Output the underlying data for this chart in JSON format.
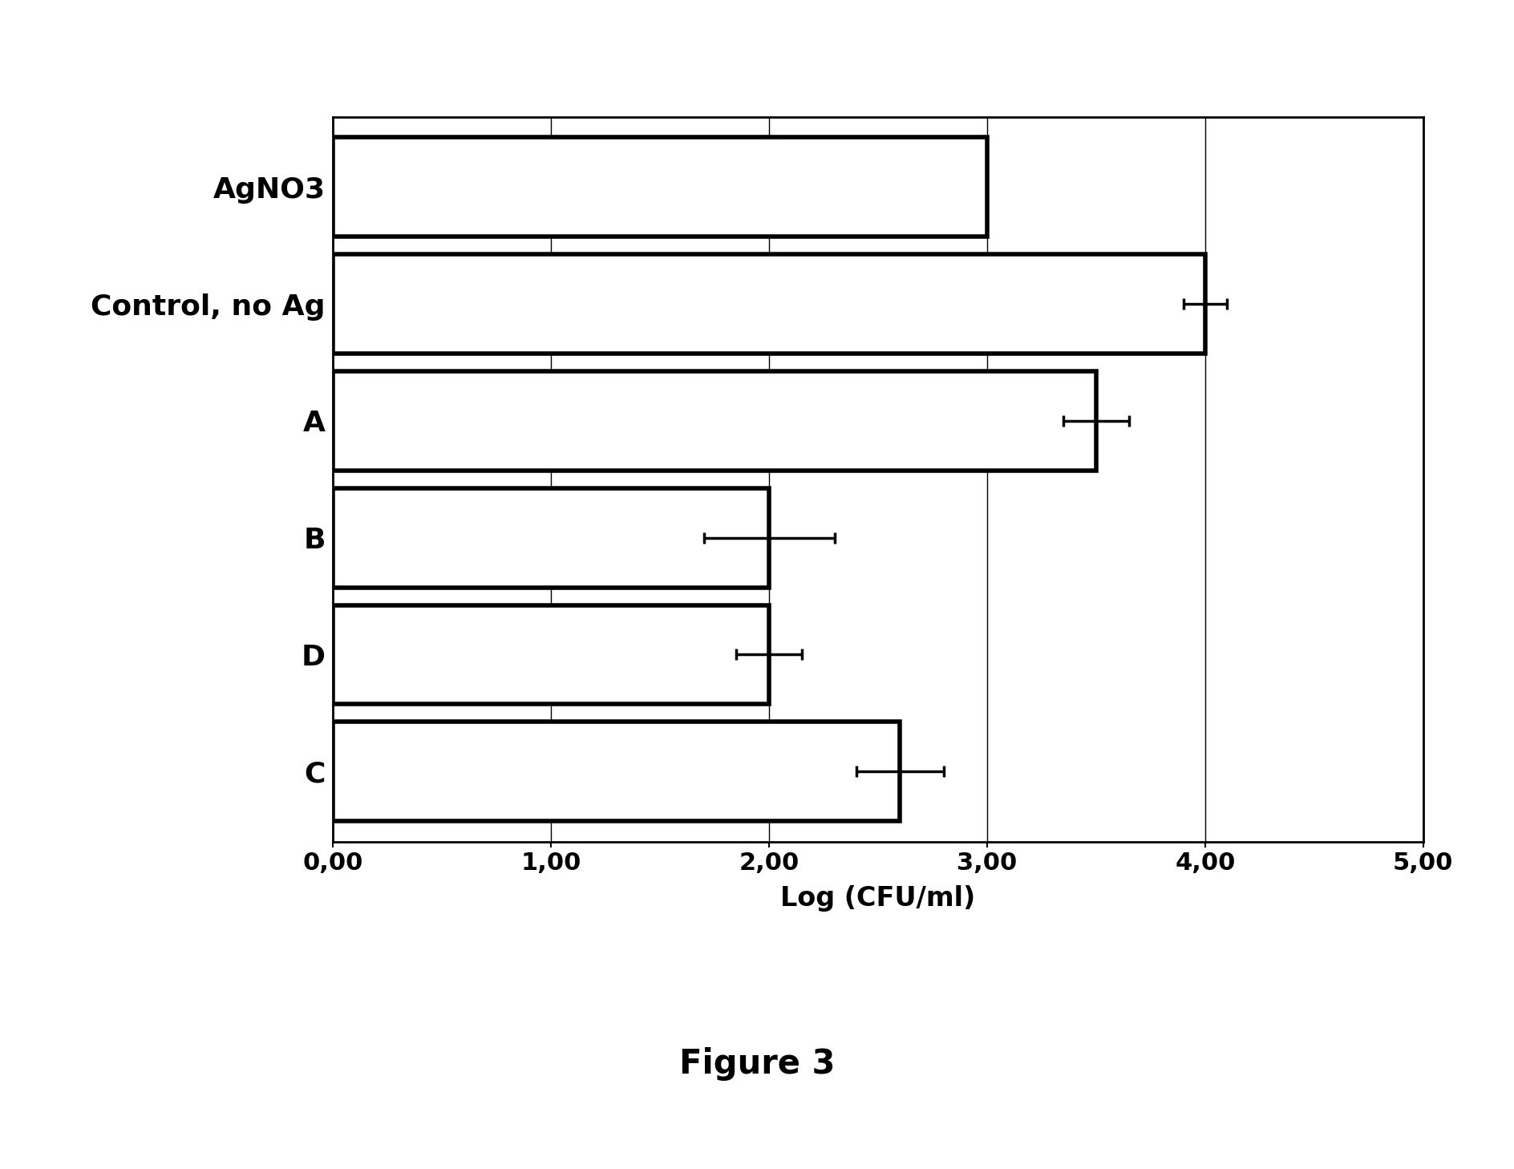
{
  "categories": [
    "AgNO3",
    "Control, no Ag",
    "A",
    "B",
    "D",
    "C"
  ],
  "values": [
    3.0,
    4.0,
    3.5,
    2.0,
    2.0,
    2.6
  ],
  "errors": [
    0.0,
    0.1,
    0.15,
    0.3,
    0.15,
    0.2
  ],
  "xlabel": "Log (CFU/ml)",
  "title": "Figure 3",
  "xlim": [
    0,
    5.0
  ],
  "xticks": [
    0.0,
    1.0,
    2.0,
    3.0,
    4.0,
    5.0
  ],
  "xticklabels": [
    "0,00",
    "1,00",
    "2,00",
    "3,00",
    "4,00",
    "5,00"
  ],
  "bar_color": "#ffffff",
  "bar_edgecolor": "#000000",
  "background_color": "#ffffff",
  "bar_linewidth": 4.0,
  "capsize": 5,
  "error_linewidth": 2.5,
  "title_fontsize": 30,
  "xlabel_fontsize": 24,
  "tick_fontsize": 22,
  "ylabel_fontsize": 26
}
